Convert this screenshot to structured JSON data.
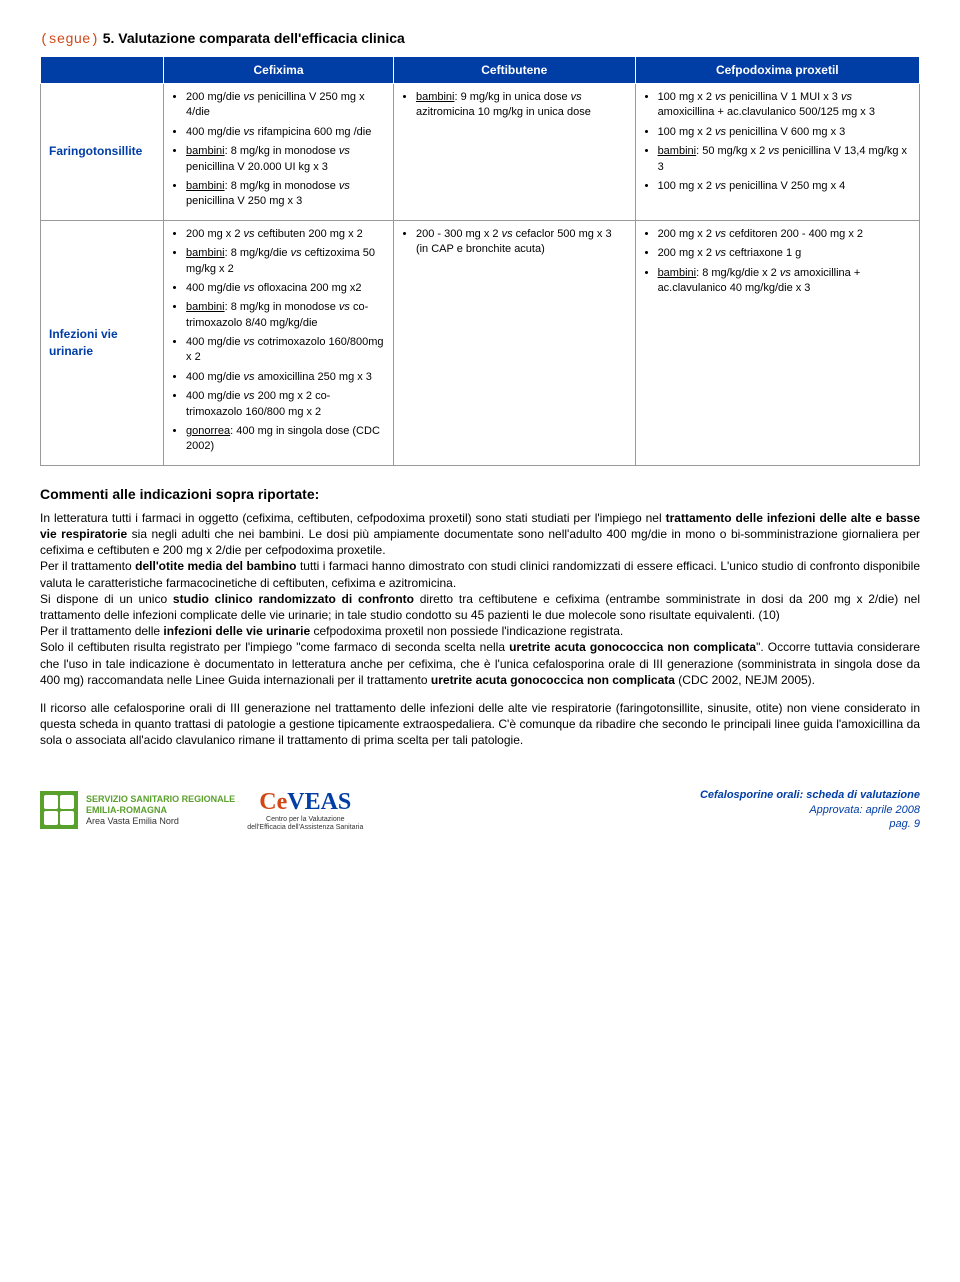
{
  "header": {
    "segue": "(segue)",
    "title": "5. Valutazione comparata dell'efficacia clinica"
  },
  "table": {
    "columns": [
      "",
      "Cefixima",
      "Ceftibutene",
      "Cefpodoxima proxetil"
    ],
    "rows": [
      {
        "label": "Faringotonsillite",
        "cefixima": [
          "200 mg/die vs penicillina V 250 mg x 4/die",
          "400 mg/die vs rifampicina 600 mg /die",
          "bambini: 8 mg/kg in monodose vs penicillina V 20.000 UI kg x 3",
          "bambini: 8 mg/kg in monodose vs penicillina V 250 mg x 3"
        ],
        "ceftibutene": [
          "bambini: 9 mg/kg in unica dose vs azitromicina 10 mg/kg in unica dose"
        ],
        "cefpodoxima": [
          "100 mg x 2 vs penicillina V 1 MUI x 3 vs amoxicillina + ac.clavulanico 500/125 mg x 3",
          "100 mg x 2 vs penicillina V 600 mg x 3",
          "bambini: 50 mg/kg x 2 vs penicillina V 13,4 mg/kg x 3",
          "100 mg x 2 vs penicillina V 250 mg x 4"
        ]
      },
      {
        "label": "Infezioni vie urinarie",
        "cefixima": [
          "200 mg x 2 vs ceftibuten 200 mg x 2",
          "bambini: 8 mg/kg/die vs ceftizoxima 50 mg/kg x 2",
          "400 mg/die vs ofloxacina 200 mg x2",
          "bambini: 8 mg/kg in monodose vs co-trimoxazolo 8/40 mg/kg/die",
          "400 mg/die vs cotrimoxazolo 160/800mg x 2",
          "400 mg/die vs amoxicillina 250 mg x 3",
          "400 mg/die vs 200 mg x 2 co-trimoxazolo 160/800 mg x 2",
          "gonorrea: 400 mg in singola dose (CDC 2002)"
        ],
        "ceftibutene": [
          "200 - 300 mg x 2 vs cefaclor 500 mg x 3 (in CAP e bronchite acuta)"
        ],
        "cefpodoxima": [
          "200 mg x 2 vs cefditoren 200 - 400 mg x 2",
          "200 mg x 2 vs ceftriaxone 1 g",
          "bambini: 8 mg/kg/die x 2 vs amoxicillina + ac.clavulanico 40 mg/kg/die x 3"
        ]
      }
    ]
  },
  "comments": {
    "heading": "Commenti alle indicazioni sopra riportate:",
    "paragraphs": [
      "In letteratura tutti i farmaci in oggetto (cefixima, ceftibuten, cefpodoxima proxetil) sono stati studiati per l'impiego nel <b>trattamento delle infezioni delle alte e basse vie respiratorie</b> sia negli adulti che nei bambini. Le dosi più ampiamente documentate sono nell'adulto 400 mg/die in mono o bi-somministrazione giornaliera per cefixima e ceftibuten e 200 mg x 2/die per cefpodoxima proxetile.<br>Per il trattamento <b>dell'otite media del bambino</b> tutti i farmaci hanno dimostrato con studi clinici randomizzati di essere efficaci. L'unico studio di confronto disponibile valuta le caratteristiche farmacocinetiche di ceftibuten, cefixima e azitromicina.<br>Si dispone di un unico <b>studio clinico randomizzato di confronto</b> diretto tra ceftibutene e cefixima (entrambe somministrate in dosi da 200 mg x 2/die) nel trattamento delle infezioni complicate delle vie urinarie; in tale studio condotto su 45 pazienti le due molecole sono risultate equivalenti. (10)<br>Per il trattamento delle <b>infezioni delle vie urinarie</b> cefpodoxima proxetil non possiede l'indicazione registrata.<br>Solo il ceftibuten risulta registrato per l'impiego \"come farmaco di seconda scelta nella <b>uretrite acuta gonococcica non complicata</b>\". Occorre tuttavia considerare che l'uso in tale indicazione è documentato in letteratura anche per cefixima, che è l'unica cefalosporina orale di III generazione (somministrata in singola dose da 400 mg) raccomandata nelle Linee Guida internazionali per il trattamento <b>uretrite acuta gonococcica non complicata</b> (CDC 2002, NEJM 2005).",
      "Il ricorso alle cefalosporine orali di III generazione nel trattamento delle infezioni delle alte vie respiratorie (faringotonsillite, sinusite, otite) non viene considerato in questa scheda in quanto trattasi di patologie a gestione tipicamente extraospedaliera. C'è comunque da ribadire che secondo le principali linee guida l'amoxicillina da sola o associata all'acido clavulanico rimane il trattamento di prima scelta per tali patologie."
    ]
  },
  "footer": {
    "ssr": {
      "line1": "SERVIZIO SANITARIO REGIONALE",
      "line2": "EMILIA-ROMAGNA",
      "line3": "Area Vasta Emilia Nord"
    },
    "ceveas": {
      "name_a": "Ce",
      "name_b": "VEAS",
      "sub1": "Centro per la Valutazione",
      "sub2": "dell'Efficacia dell'Assistenza Sanitaria"
    },
    "right": {
      "title": "Cefalosporine orali: scheda di valutazione",
      "approved": "Approvata: aprile 2008",
      "page": "pag. 9"
    }
  }
}
